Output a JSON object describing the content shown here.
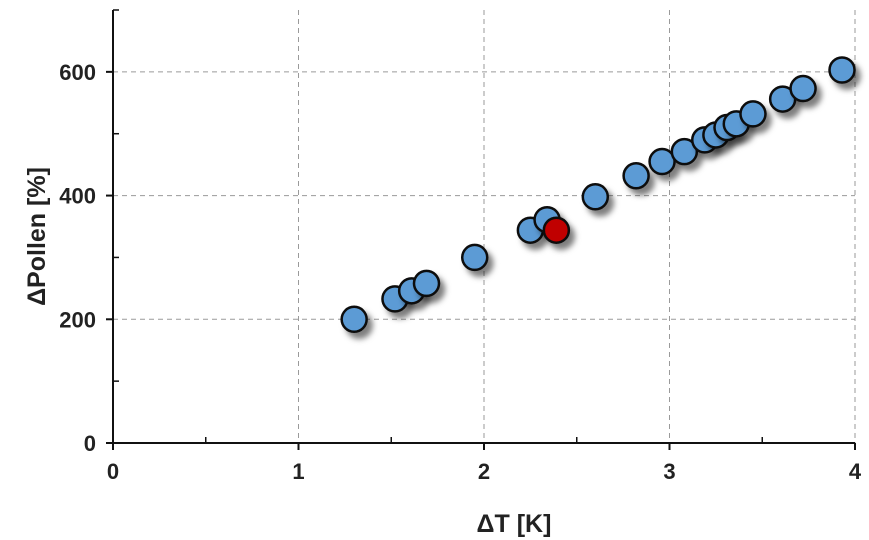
{
  "chart_data": {
    "type": "scatter",
    "title": "",
    "xlabel": "ΔT [K]",
    "ylabel": "ΔPollen [%]",
    "xlim": [
      0,
      4
    ],
    "ylim": [
      0,
      700
    ],
    "x_ticks": [
      0,
      1,
      2,
      3,
      4
    ],
    "y_ticks": [
      0,
      200,
      400,
      600
    ],
    "x_minor_ticks": [
      0.5,
      1.5,
      2.5,
      3.5
    ],
    "y_minor_ticks": [
      100,
      300,
      500,
      700
    ],
    "grid": true,
    "series": [
      {
        "color": "#5b9bd5",
        "points": [
          {
            "x": 1.3,
            "y": 200
          },
          {
            "x": 1.52,
            "y": 233
          },
          {
            "x": 1.61,
            "y": 246
          },
          {
            "x": 1.69,
            "y": 258
          },
          {
            "x": 1.95,
            "y": 300
          },
          {
            "x": 2.25,
            "y": 344
          },
          {
            "x": 2.34,
            "y": 361
          },
          {
            "x": 2.6,
            "y": 398
          },
          {
            "x": 2.82,
            "y": 432
          },
          {
            "x": 2.96,
            "y": 455
          },
          {
            "x": 3.08,
            "y": 471
          },
          {
            "x": 3.19,
            "y": 490
          },
          {
            "x": 3.25,
            "y": 498
          },
          {
            "x": 3.31,
            "y": 510
          },
          {
            "x": 3.36,
            "y": 516
          },
          {
            "x": 3.45,
            "y": 532
          },
          {
            "x": 3.61,
            "y": 556
          },
          {
            "x": 3.72,
            "y": 573
          },
          {
            "x": 3.93,
            "y": 603
          }
        ]
      },
      {
        "color": "#c00000",
        "points": [
          {
            "x": 2.39,
            "y": 344
          }
        ]
      }
    ]
  }
}
